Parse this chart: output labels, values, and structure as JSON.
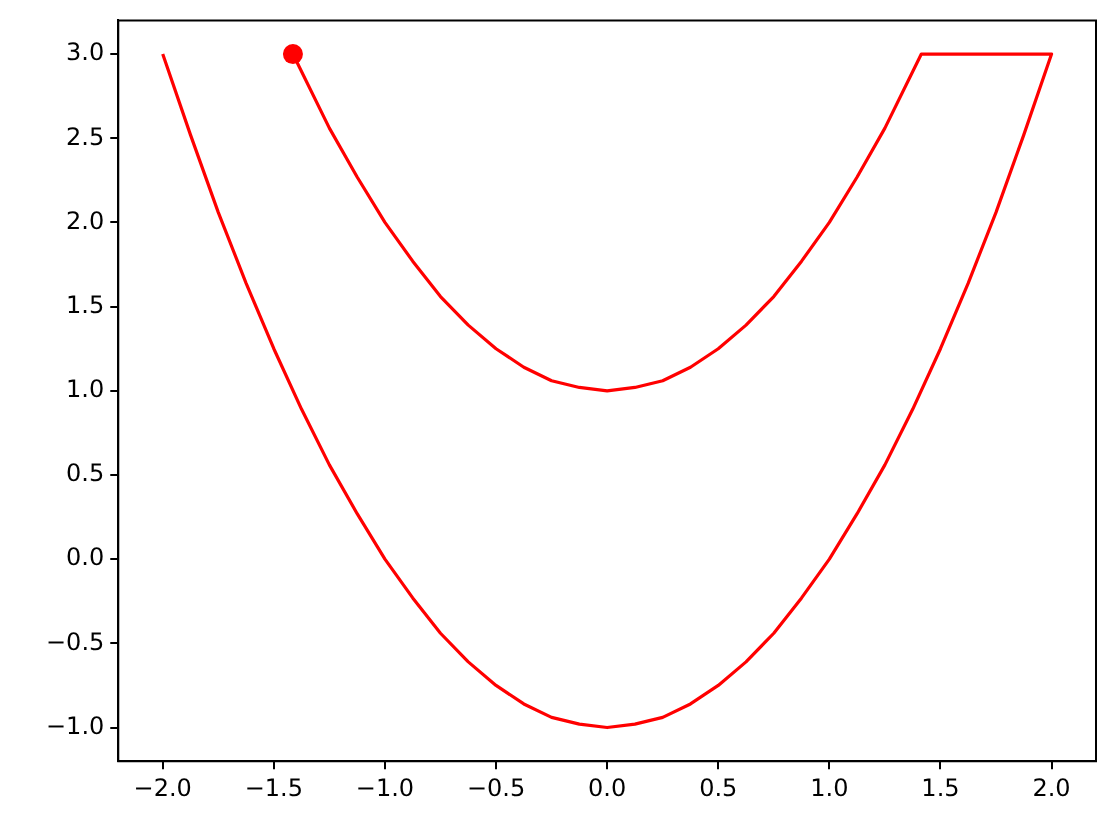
{
  "chart_data": {
    "type": "line",
    "series": [
      {
        "type": "line",
        "color": "#ff0000",
        "marker": "none",
        "line_style": "solid",
        "x": [
          -2,
          -1.875,
          -1.75,
          -1.625,
          -1.5,
          -1.375,
          -1.25,
          -1.125,
          -1,
          -0.875,
          -0.75,
          -0.625,
          -0.5,
          -0.375,
          -0.25,
          -0.125,
          0,
          0.125,
          0.25,
          0.375,
          0.5,
          0.625,
          0.75,
          0.875,
          1,
          1.125,
          1.25,
          1.375,
          1.5,
          1.625,
          1.75,
          1.875,
          2,
          1.414,
          1.25,
          1.125,
          1,
          0.875,
          0.75,
          0.625,
          0.5,
          0.375,
          0.25,
          0.125,
          0,
          -0.125,
          -0.25,
          -0.375,
          -0.5,
          -0.625,
          -0.75,
          -0.875,
          -1,
          -1.125,
          -1.25,
          -1.414
        ],
        "values": [
          3,
          2.52,
          2.06,
          1.64,
          1.25,
          0.89,
          0.56,
          0.27,
          0,
          -0.23,
          -0.44,
          -0.61,
          -0.75,
          -0.86,
          -0.94,
          -0.98,
          -1,
          -0.98,
          -0.94,
          -0.86,
          -0.75,
          -0.61,
          -0.44,
          -0.23,
          0,
          0.27,
          0.56,
          0.89,
          1.25,
          1.64,
          2.06,
          2.52,
          3,
          3,
          2.56,
          2.27,
          2,
          1.77,
          1.56,
          1.39,
          1.25,
          1.14,
          1.06,
          1.02,
          1,
          1.02,
          1.06,
          1.14,
          1.25,
          1.39,
          1.56,
          1.77,
          2,
          2.27,
          2.56,
          3
        ]
      },
      {
        "type": "scatter",
        "color": "#ff0000",
        "marker": "circle",
        "x": [
          -1.414
        ],
        "values": [
          3
        ]
      }
    ],
    "xlim": [
      -2.2,
      2.2
    ],
    "xticks": [
      {
        "value": -2,
        "label": "−2.0"
      },
      {
        "value": -1.5,
        "label": "−1.5"
      },
      {
        "value": -1,
        "label": "−1.0"
      },
      {
        "value": -0.5,
        "label": "−0.5"
      },
      {
        "value": 0,
        "label": "0.0"
      },
      {
        "value": 0.5,
        "label": "0.5"
      },
      {
        "value": 1,
        "label": "1.0"
      },
      {
        "value": 1.5,
        "label": "1.5"
      },
      {
        "value": 2,
        "label": "2.0"
      }
    ],
    "ylim": [
      -1.2,
      3.2
    ],
    "yticks": [
      {
        "value": -1,
        "label": "−1.0"
      },
      {
        "value": -0.5,
        "label": "−0.5"
      },
      {
        "value": 0,
        "label": "0.0"
      },
      {
        "value": 0.5,
        "label": "0.5"
      },
      {
        "value": 1,
        "label": "1.0"
      },
      {
        "value": 1.5,
        "label": "1.5"
      },
      {
        "value": 2,
        "label": "2.0"
      },
      {
        "value": 2.5,
        "label": "2.5"
      },
      {
        "value": 3,
        "label": "3.0"
      }
    ],
    "grid": false,
    "legend": false
  }
}
